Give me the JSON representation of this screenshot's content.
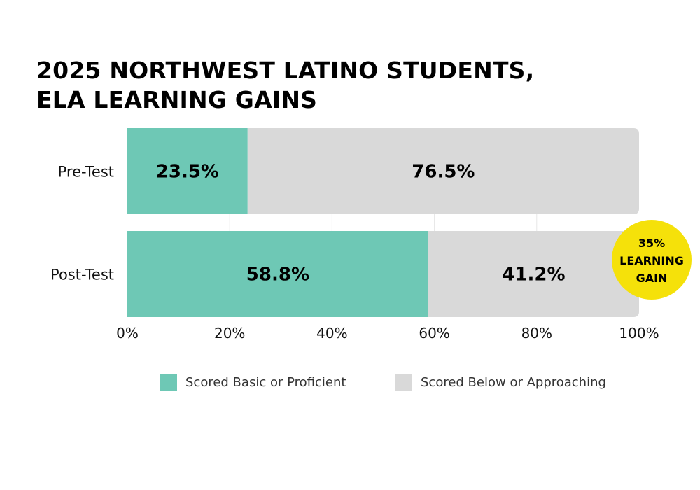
{
  "title_lines": [
    "2025 NORTHWEST LATINO STUDENTS,",
    "ELA LEARNING GAINS"
  ],
  "colors": {
    "proficient": "#6EC8B5",
    "below": "#D9D9D9",
    "badge": "#F5E10A",
    "grid": "#E6E6E6",
    "text": "#000000"
  },
  "chart_data": {
    "type": "bar",
    "orientation": "horizontal",
    "stacked": true,
    "title": "2025 NORTHWEST LATINO STUDENTS, ELA LEARNING GAINS",
    "categories": [
      "Pre-Test",
      "Post-Test"
    ],
    "series": [
      {
        "name": "Scored Basic or Proficient",
        "values": [
          23.5,
          58.8
        ],
        "labels": [
          "23.5%",
          "58.8%"
        ]
      },
      {
        "name": "Scored Below or Approaching",
        "values": [
          76.5,
          41.2
        ],
        "labels": [
          "76.5%",
          "41.2%"
        ]
      }
    ],
    "xlim": [
      0,
      100
    ],
    "xticks": [
      0,
      20,
      40,
      60,
      80,
      100
    ],
    "xtick_labels": [
      "0%",
      "20%",
      "40%",
      "60%",
      "80%",
      "100%"
    ],
    "grid": true,
    "legend_position": "bottom",
    "annotation": {
      "lines": [
        "35%",
        "LEARNING",
        "GAIN"
      ],
      "category": "Post-Test"
    }
  },
  "legend": [
    {
      "label": "Scored Basic or Proficient"
    },
    {
      "label": "Scored Below or Approaching"
    }
  ]
}
